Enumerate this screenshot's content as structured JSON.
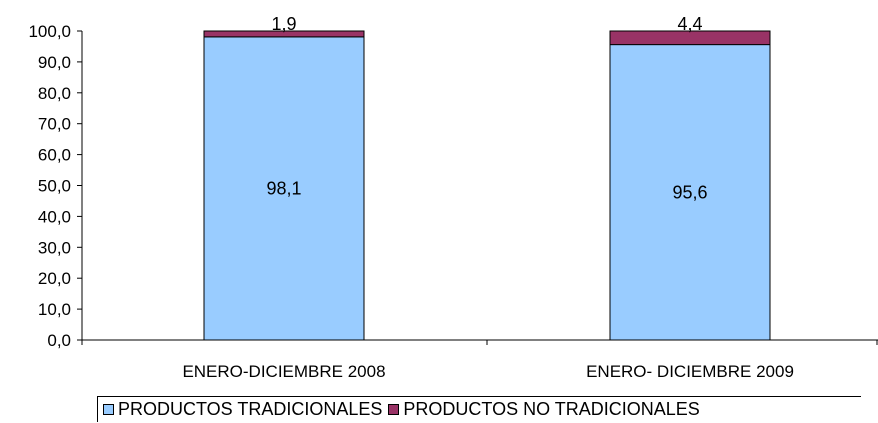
{
  "chart_data": {
    "type": "bar",
    "stacked": true,
    "categories": [
      "ENERO-DICIEMBRE 2008",
      "ENERO- DICIEMBRE 2009"
    ],
    "series": [
      {
        "name": "PRODUCTOS TRADICIONALES",
        "values": [
          98.1,
          95.6
        ],
        "labels": [
          "98,1",
          "95,6"
        ],
        "color": "#99CCFF"
      },
      {
        "name": "PRODUCTOS NO TRADICIONALES",
        "values": [
          1.9,
          4.4
        ],
        "labels": [
          "1,9",
          "4,4"
        ],
        "color": "#993366"
      }
    ],
    "ylim": [
      0,
      100
    ],
    "yticks": [
      "0,0",
      "10,0",
      "20,0",
      "30,0",
      "40,0",
      "50,0",
      "60,0",
      "70,0",
      "80,0",
      "90,0",
      "100,0"
    ],
    "grid": false,
    "legend_position": "bottom",
    "title": "",
    "xlabel": "",
    "ylabel": ""
  }
}
